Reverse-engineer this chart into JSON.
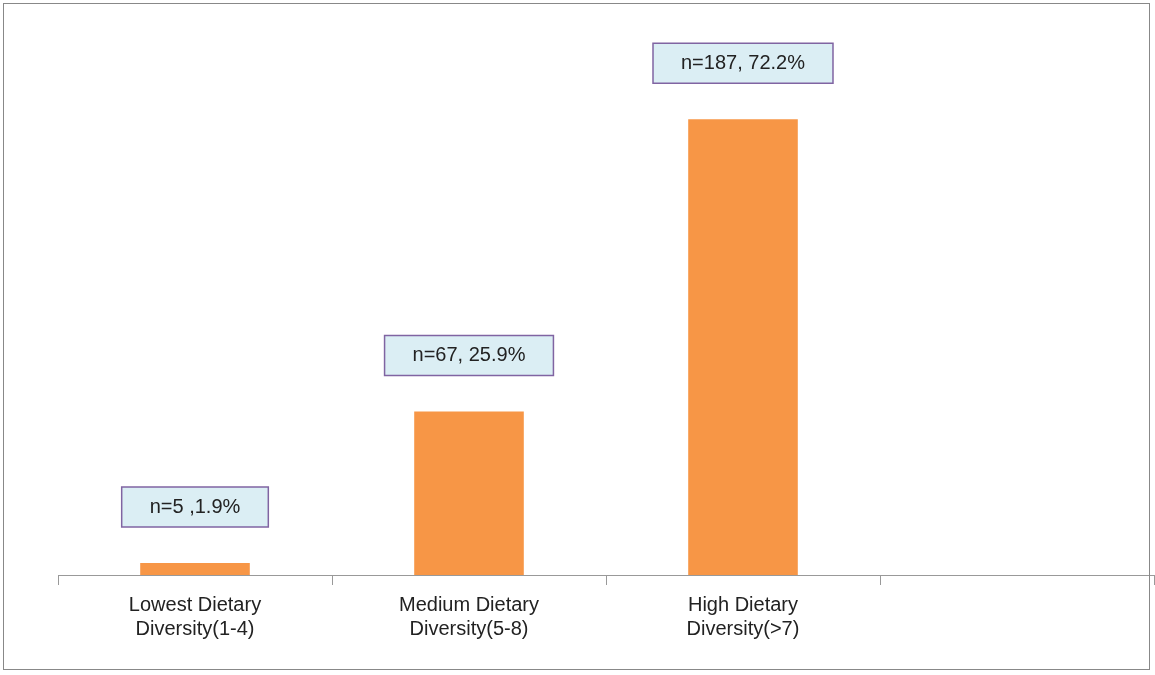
{
  "chart_data": {
    "type": "bar",
    "categories": [
      "Lowest Dietary Diversity(1-4)",
      "Medium Dietary Diversity(5-8)",
      "High Dietary Diversity(>7)",
      null
    ],
    "values": [
      1.9,
      25.9,
      72.2,
      null
    ],
    "value_labels": [
      "n=5 ,1.9%",
      "n=67, 25.9%",
      "n=187, 72.2%",
      null
    ],
    "color": "#f79646",
    "grid": false,
    "legend": false
  }
}
